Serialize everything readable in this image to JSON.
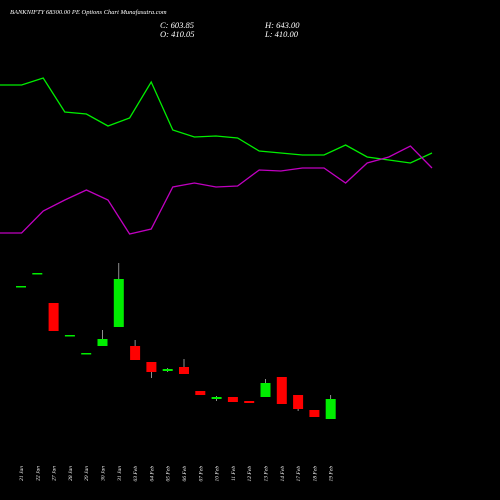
{
  "chart_data": [
    {
      "type": "line",
      "ylim": [
        0,
        500
      ],
      "series": [
        {
          "color": "#00ee00",
          "values": [
            415,
            415,
            422,
            388,
            386,
            374,
            382,
            418,
            370,
            363,
            364,
            362,
            349,
            347,
            345,
            345,
            355,
            343,
            340,
            337,
            347
          ]
        },
        {
          "color": "#c000c0",
          "values": [
            267,
            267,
            289,
            300,
            310,
            300,
            266,
            271,
            313,
            317,
            313,
            314,
            330,
            329,
            332,
            332,
            317,
            337,
            343,
            354,
            332
          ]
        }
      ]
    },
    {
      "type": "candlestick",
      "title": "BANKNIFTY 68300.00 PE Options Chart Munafasutra.com",
      "annotations": [
        "C: 603.85",
        "H: 643.00",
        "O: 410.05",
        "L: 410.00"
      ],
      "ylim": [
        0,
        500
      ],
      "up_color": "#00ee00",
      "down_color": "#ff0000",
      "categories": [
        "21 Jan",
        "22 Jan",
        "27 Jan",
        "28 Jan",
        "29 Jan",
        "30 Jan",
        "31 Jan",
        "03 Feb",
        "04 Feb",
        "05 Feb",
        "06 Feb",
        "07 Feb",
        "10 Feb",
        "11 Feb",
        "12 Feb",
        "13 Feb",
        "14 Feb",
        "17 Feb",
        "18 Feb",
        "19 Feb"
      ],
      "open": [
        214,
        227,
        197,
        165,
        147,
        154,
        173,
        154,
        138,
        129,
        133,
        109,
        101,
        103,
        99,
        103,
        123,
        105,
        90,
        81
      ],
      "high": [
        214,
        227,
        197,
        165,
        147,
        170,
        237,
        160,
        138,
        132,
        141,
        109,
        104,
        103,
        99,
        121,
        123,
        105,
        90,
        105
      ],
      "low": [
        214,
        227,
        169,
        165,
        147,
        154,
        173,
        140,
        122,
        128,
        126,
        105,
        99,
        98,
        97,
        103,
        96,
        89,
        83,
        81
      ],
      "close": [
        214,
        227,
        169,
        165,
        147,
        161,
        221,
        140,
        128,
        131,
        126,
        105,
        103,
        98,
        97,
        117,
        96,
        91,
        83,
        101
      ]
    }
  ]
}
